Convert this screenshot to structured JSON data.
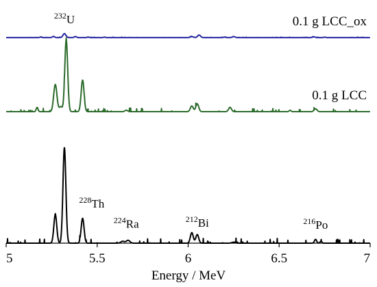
{
  "chart_data": {
    "type": "line",
    "xlabel": "Energy / MeV",
    "ylabel": "",
    "xlim": [
      5,
      7
    ],
    "xticks": [
      5,
      5.5,
      6,
      6.5,
      7
    ],
    "xtick_labels": [
      "5",
      "5.5",
      "6",
      "6.5",
      "7"
    ],
    "grid": false,
    "legend": "none",
    "y_axis_visible": false,
    "stacked_offset_traces": true,
    "series": [
      {
        "name": "0.1 g LCC_ox",
        "color": "#1f1f9e",
        "baseline": 0.86,
        "scale": 0.035,
        "noise": 0.004,
        "peaks": [
          {
            "x": 5.19,
            "h": 0.06,
            "w": 0.005
          },
          {
            "x": 5.26,
            "h": 0.14,
            "w": 0.006
          },
          {
            "x": 5.32,
            "h": 0.47,
            "w": 0.008
          },
          {
            "x": 5.38,
            "h": 0.12,
            "w": 0.006
          },
          {
            "x": 5.45,
            "h": 0.06,
            "w": 0.005
          },
          {
            "x": 5.54,
            "h": 0.05,
            "w": 0.005
          },
          {
            "x": 6.02,
            "h": 0.12,
            "w": 0.008
          },
          {
            "x": 6.06,
            "h": 0.3,
            "w": 0.008
          },
          {
            "x": 6.2,
            "h": 0.05,
            "w": 0.006
          },
          {
            "x": 6.25,
            "h": 0.12,
            "w": 0.007
          },
          {
            "x": 6.69,
            "h": 0.1,
            "w": 0.006
          },
          {
            "x": 6.75,
            "h": 0.05,
            "w": 0.005
          }
        ]
      },
      {
        "name": "0.1 g LCC",
        "color": "#2a6a2a",
        "baseline": 0.55,
        "scale": 0.3,
        "noise": 0.004,
        "peaks": [
          {
            "x": 5.17,
            "h": 0.06,
            "w": 0.005
          },
          {
            "x": 5.27,
            "h": 0.38,
            "w": 0.009
          },
          {
            "x": 5.3,
            "h": 0.07,
            "w": 0.008
          },
          {
            "x": 5.33,
            "h": 1.0,
            "w": 0.008
          },
          {
            "x": 5.42,
            "h": 0.44,
            "w": 0.008
          },
          {
            "x": 5.66,
            "h": 0.02,
            "w": 0.008
          },
          {
            "x": 6.02,
            "h": 0.08,
            "w": 0.008
          },
          {
            "x": 6.05,
            "h": 0.11,
            "w": 0.008
          },
          {
            "x": 6.23,
            "h": 0.06,
            "w": 0.008
          },
          {
            "x": 6.56,
            "h": 0.02,
            "w": 0.005
          },
          {
            "x": 6.7,
            "h": 0.04,
            "w": 0.008
          }
        ]
      },
      {
        "name": "",
        "color": "#000000",
        "baseline": 0.0,
        "scale": 0.4,
        "noise": 0.004,
        "peaks": [
          {
            "x": 5.27,
            "h": 0.3,
            "w": 0.008
          },
          {
            "x": 5.32,
            "h": 1.0,
            "w": 0.008
          },
          {
            "x": 5.42,
            "h": 0.26,
            "w": 0.008
          },
          {
            "x": 5.64,
            "h": 0.02,
            "w": 0.01
          },
          {
            "x": 5.67,
            "h": 0.03,
            "w": 0.01
          },
          {
            "x": 6.02,
            "h": 0.11,
            "w": 0.008
          },
          {
            "x": 6.05,
            "h": 0.09,
            "w": 0.008
          },
          {
            "x": 6.25,
            "h": 0.01,
            "w": 0.01
          },
          {
            "x": 6.7,
            "h": 0.04,
            "w": 0.006
          },
          {
            "x": 6.73,
            "h": 0.02,
            "w": 0.005
          }
        ]
      }
    ],
    "annotations": [
      {
        "iso": "232",
        "elem": "U",
        "x": 5.32,
        "y": 1.0
      },
      {
        "iso": "228",
        "elem": "Th",
        "x": 5.47,
        "y": 0.3
      },
      {
        "iso": "224",
        "elem": "Ra",
        "x": 5.66,
        "y": 0.09
      },
      {
        "iso": "212",
        "elem": "Bi",
        "x": 6.05,
        "y": 0.1
      },
      {
        "iso": "216",
        "elem": "Po",
        "x": 6.7,
        "y": 0.08
      }
    ]
  }
}
